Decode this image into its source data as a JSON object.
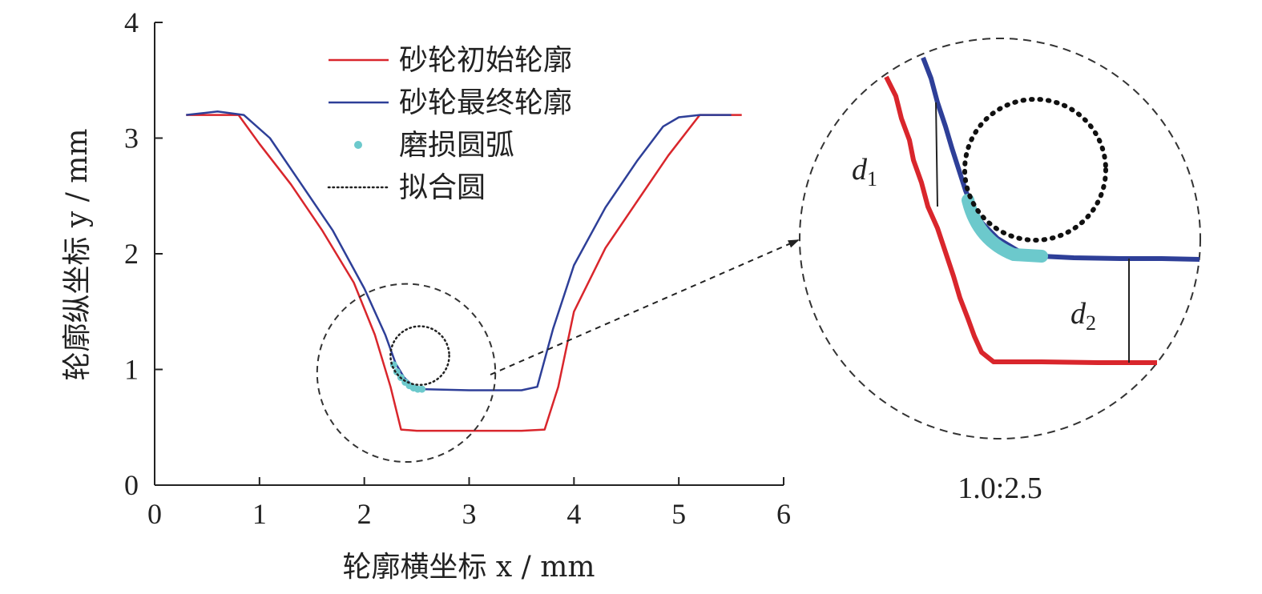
{
  "chart_data": {
    "type": "line",
    "xlabel": "轮廓横坐标 x / mm",
    "ylabel": "轮廓纵坐标 y / mm",
    "xlim": [
      0,
      6
    ],
    "ylim": [
      0,
      4
    ],
    "x_ticks": [
      "0",
      "1",
      "2",
      "3",
      "4",
      "5",
      "6"
    ],
    "y_ticks": [
      "0",
      "1",
      "2",
      "3",
      "4"
    ],
    "grid": false,
    "legend_position": "top-center",
    "series": [
      {
        "name": "砂轮初始轮廓",
        "color": "#d9262c",
        "style": "solid",
        "x": [
          0.3,
          0.8,
          1.0,
          1.3,
          1.6,
          1.9,
          2.1,
          2.25,
          2.35,
          2.5,
          3.0,
          3.5,
          3.72,
          3.85,
          4.0,
          4.3,
          4.6,
          4.9,
          5.2,
          5.6
        ],
        "y": [
          3.2,
          3.2,
          2.95,
          2.6,
          2.2,
          1.75,
          1.3,
          0.85,
          0.48,
          0.47,
          0.47,
          0.47,
          0.48,
          0.85,
          1.5,
          2.05,
          2.45,
          2.85,
          3.2,
          3.2
        ]
      },
      {
        "name": "砂轮最终轮廓",
        "color": "#2e3f98",
        "style": "solid",
        "x": [
          0.3,
          0.6,
          0.85,
          1.1,
          1.4,
          1.7,
          2.0,
          2.2,
          2.3,
          2.38,
          2.45,
          2.5,
          2.55,
          3.0,
          3.5,
          3.65,
          3.8,
          4.0,
          4.3,
          4.6,
          4.85,
          5.0,
          5.2,
          5.5
        ],
        "y": [
          3.2,
          3.23,
          3.2,
          3.0,
          2.6,
          2.2,
          1.7,
          1.3,
          1.05,
          0.93,
          0.87,
          0.85,
          0.83,
          0.82,
          0.82,
          0.85,
          1.35,
          1.9,
          2.4,
          2.8,
          3.1,
          3.18,
          3.2,
          3.2
        ]
      },
      {
        "name": "磨损圆弧",
        "color": "#6cc9cc",
        "style": "dots",
        "x": [
          2.28,
          2.31,
          2.35,
          2.39,
          2.43,
          2.47,
          2.51,
          2.55
        ],
        "y": [
          1.04,
          0.98,
          0.93,
          0.89,
          0.86,
          0.84,
          0.83,
          0.83
        ]
      },
      {
        "name": "拟合圆",
        "color": "#222222",
        "style": "dotted",
        "circle": {
          "cx": 2.53,
          "cy": 1.12,
          "r": 0.28
        }
      }
    ],
    "zoom_region": {
      "cx": 2.4,
      "cy": 0.97,
      "r": 0.85
    },
    "annotations": [
      "d1",
      "d2"
    ],
    "scale_label": "1.0:2.5"
  }
}
